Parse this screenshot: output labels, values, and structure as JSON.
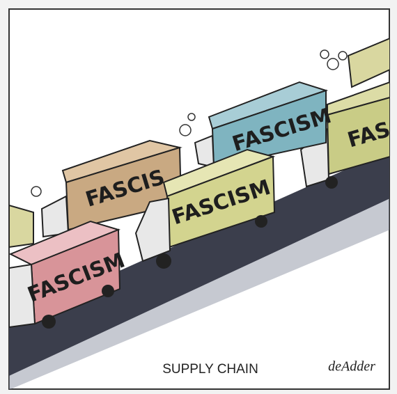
{
  "image": {
    "truck_labels": [
      "FASCISM",
      "FASCIS",
      "FASCISM",
      "FASCISM",
      "FAS"
    ],
    "caption": "SUPPLY CHAIN",
    "signature": "deAdder"
  }
}
